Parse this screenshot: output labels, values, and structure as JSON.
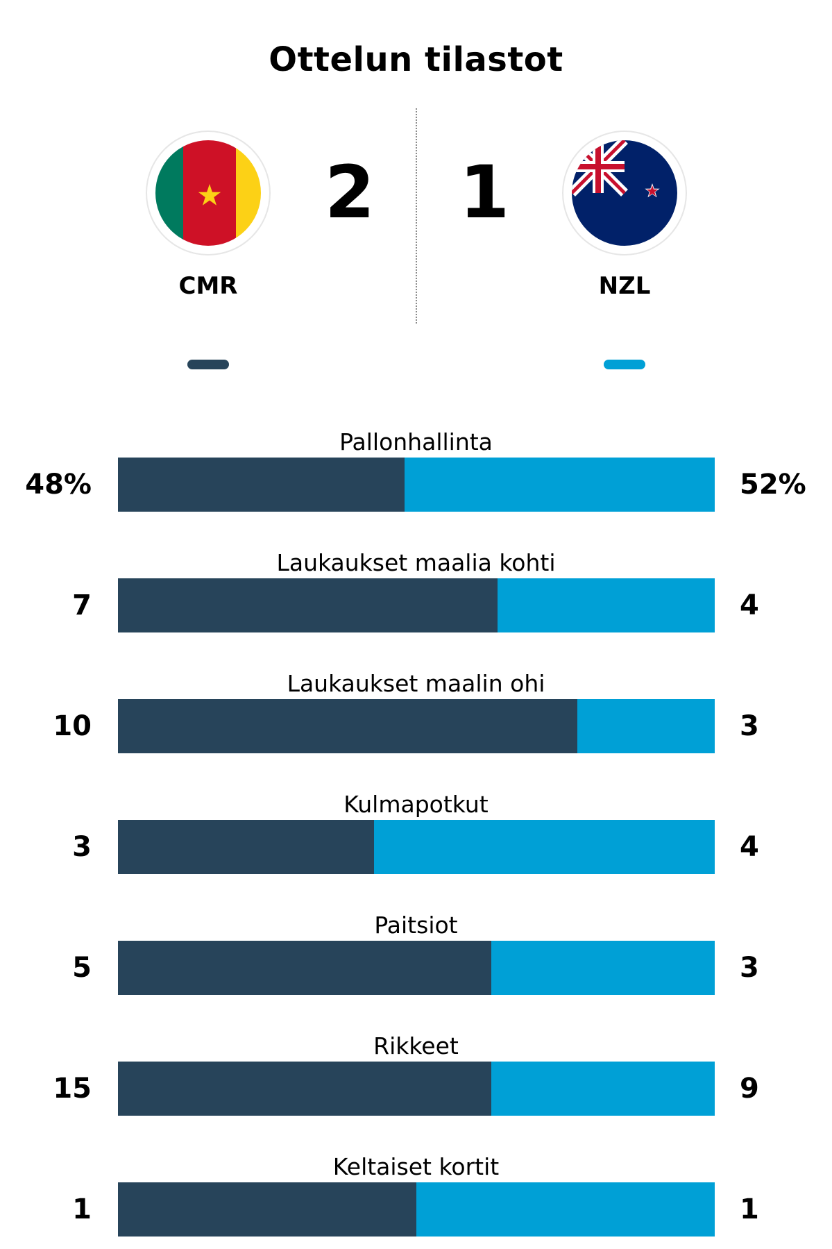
{
  "title": "Ottelun tilastot",
  "home": {
    "code": "CMR",
    "score": "2",
    "color": "#27445a",
    "flag": "cameroon-flag"
  },
  "away": {
    "code": "NZL",
    "score": "1",
    "color": "#00a0d6",
    "flag": "new-zealand-flag"
  },
  "chart_data": {
    "type": "bar",
    "categories": [
      "Pallonhallinta",
      "Laukaukset maalia kohti",
      "Laukaukset maalin ohi",
      "Kulmapotkut",
      "Paitsiot",
      "Rikkeet",
      "Keltaiset kortit"
    ],
    "series": [
      {
        "name": "CMR",
        "values": [
          48,
          7,
          10,
          3,
          5,
          15,
          1
        ],
        "labels": [
          "48%",
          "7",
          "10",
          "3",
          "5",
          "15",
          "1"
        ]
      },
      {
        "name": "NZL",
        "values": [
          52,
          4,
          3,
          4,
          3,
          9,
          1
        ],
        "labels": [
          "52%",
          "4",
          "3",
          "4",
          "3",
          "9",
          "1"
        ]
      }
    ]
  }
}
